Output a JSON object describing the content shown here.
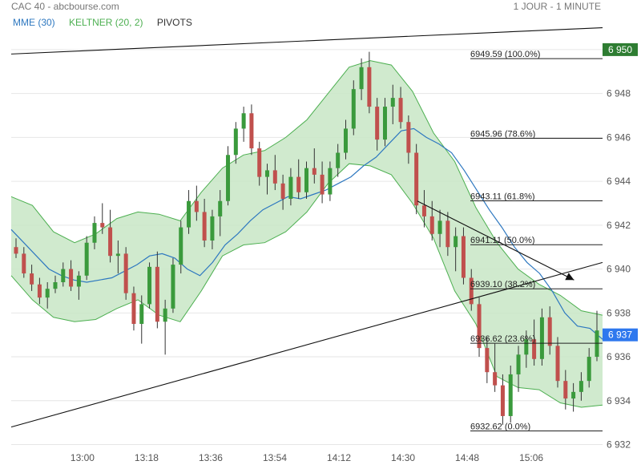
{
  "header": {
    "title": "CAC 40 - abcbourse.com",
    "period": "1 JOUR - 1 MINUTE"
  },
  "legend": {
    "mme": "MME (30)",
    "keltner": "KELTNER (20, 2)",
    "pivots": "PIVOTS"
  },
  "colors": {
    "up": "#3a9a3c",
    "down": "#c0504d",
    "mme": "#2e78c0",
    "band_fill": "#c8e6c5",
    "band_line": "#4caf50",
    "last_price": "#2e78ee"
  },
  "price_tags": {
    "top": "6 950",
    "last": "6 937"
  },
  "chart_data": {
    "type": "candlestick",
    "title": "",
    "x_ticks": [
      "13:00",
      "13:18",
      "13:36",
      "13:54",
      "14:12",
      "14:30",
      "14:48",
      "15:06"
    ],
    "y_ticks": [
      "6 932",
      "6 934",
      "6 936",
      "6 938",
      "6 940",
      "6 942",
      "6 944",
      "6 946",
      "6 948",
      "6 950"
    ],
    "y_range": [
      6931.8,
      6950.8
    ],
    "grid": "horizontal",
    "fibonacci_levels": [
      {
        "label": "6949.59  (100.0%)",
        "value": 6949.59
      },
      {
        "label": "6945.96  (78.6%)",
        "value": 6945.96
      },
      {
        "label": "6943.11  (61.8%)",
        "value": 6943.11
      },
      {
        "label": "6941.11  (50.0%)",
        "value": 6941.11
      },
      {
        "label": "6939.10  (38.2%)",
        "value": 6939.1
      },
      {
        "label": "6936.62  (23.6%)",
        "value": 6936.62
      },
      {
        "label": "6932.62  (0.0%)",
        "value": 6932.62
      }
    ],
    "trendlines": [
      {
        "from": [
          "12:40",
          6949.8
        ],
        "to": [
          "15:26",
          6951.0
        ]
      },
      {
        "from": [
          "12:40",
          6932.8
        ],
        "to": [
          "15:26",
          6940.3
        ]
      },
      {
        "from": [
          "14:34",
          6943.1
        ],
        "to": [
          "15:18",
          6939.5
        ],
        "arrow": true
      }
    ],
    "series": [
      {
        "name": "MME (30)",
        "points": [
          [
            6941.8,
            6941.2
          ],
          [
            6940.6,
            6940.0
          ],
          [
            6939.7,
            6939.5
          ],
          [
            6939.4,
            6939.5
          ],
          [
            6939.6,
            6939.9
          ],
          [
            6940.2,
            6940.6
          ],
          [
            6940.7,
            6940.5
          ],
          [
            6940.0,
            6939.7
          ],
          [
            6940.3,
            6941.1
          ],
          [
            6941.6,
            6942.2
          ],
          [
            6942.7,
            6943.0
          ],
          [
            6943.3,
            6943.2
          ],
          [
            6943.4,
            6943.6
          ],
          [
            6943.9,
            6944.2
          ],
          [
            6944.7,
            6945.1
          ],
          [
            6945.7,
            6946.3
          ],
          [
            6946.4,
            6946.0
          ],
          [
            6945.7,
            6945.3
          ],
          [
            6944.5,
            6943.6
          ],
          [
            6942.7,
            6941.9
          ],
          [
            6941.0,
            6940.3
          ],
          [
            6939.8,
            6939.0
          ],
          [
            6938.0,
            6937.4
          ],
          [
            6937.3,
            6936.8
          ]
        ]
      },
      {
        "name": "KELTNER (20, 2)",
        "points": [
          [
            6943.3,
            6939.7
          ],
          [
            6942.9,
            6938.6
          ],
          [
            6941.7,
            6937.8
          ],
          [
            6941.2,
            6937.6
          ],
          [
            6941.6,
            6937.7
          ],
          [
            6942.3,
            6938.2
          ],
          [
            6942.6,
            6938.6
          ],
          [
            6942.5,
            6937.9
          ],
          [
            6942.2,
            6937.6
          ],
          [
            6943.5,
            6939.0
          ],
          [
            6944.6,
            6940.6
          ],
          [
            6945.2,
            6941.1
          ],
          [
            6945.4,
            6941.2
          ],
          [
            6946.0,
            6941.7
          ],
          [
            6946.8,
            6942.6
          ],
          [
            6948.0,
            6943.9
          ],
          [
            6949.2,
            6944.8
          ],
          [
            6949.5,
            6944.7
          ],
          [
            6949.3,
            6944.3
          ],
          [
            6948.1,
            6943.0
          ],
          [
            6946.2,
            6941.4
          ],
          [
            6944.9,
            6939.0
          ],
          [
            6942.8,
            6937.5
          ],
          [
            6941.2,
            6935.1
          ],
          [
            6940.0,
            6934.6
          ],
          [
            6939.3,
            6934.5
          ],
          [
            6938.8,
            6933.9
          ],
          [
            6938.1,
            6933.7
          ],
          [
            6937.9,
            6933.8
          ]
        ]
      },
      {
        "name": "CAC 40",
        "candles": [
          [
            6941.0,
            6941.4,
            6940.5,
            6940.7
          ],
          [
            6940.7,
            6941.0,
            6939.6,
            6939.8
          ],
          [
            6939.8,
            6940.2,
            6939.0,
            6939.3
          ],
          [
            6939.3,
            6939.6,
            6938.4,
            6938.7
          ],
          [
            6938.7,
            6939.4,
            6938.2,
            6939.1
          ],
          [
            6939.1,
            6939.7,
            6938.9,
            6939.4
          ],
          [
            6939.4,
            6940.3,
            6939.2,
            6940.0
          ],
          [
            6940.0,
            6940.4,
            6939.0,
            6939.2
          ],
          [
            6939.2,
            6939.9,
            6938.6,
            6939.7
          ],
          [
            6939.7,
            6941.5,
            6939.5,
            6941.2
          ],
          [
            6941.2,
            6942.4,
            6940.9,
            6942.1
          ],
          [
            6942.1,
            6943.0,
            6941.6,
            6941.9
          ],
          [
            6941.9,
            6942.7,
            6940.3,
            6940.6
          ],
          [
            6940.6,
            6941.3,
            6939.8,
            6940.7
          ],
          [
            6940.7,
            6941.0,
            6938.6,
            6938.9
          ],
          [
            6938.9,
            6939.2,
            6937.2,
            6937.5
          ],
          [
            6937.5,
            6938.8,
            6936.6,
            6938.4
          ],
          [
            6938.4,
            6940.3,
            6938.2,
            6940.1
          ],
          [
            6940.1,
            6940.8,
            6937.3,
            6937.6
          ],
          [
            6937.6,
            6938.6,
            6936.1,
            6938.2
          ],
          [
            6938.2,
            6940.5,
            6938.0,
            6940.2
          ],
          [
            6940.2,
            6942.2,
            6939.8,
            6941.9
          ],
          [
            6941.9,
            6943.6,
            6941.6,
            6943.1
          ],
          [
            6943.1,
            6943.8,
            6942.2,
            6942.6
          ],
          [
            6942.6,
            6943.2,
            6941.0,
            6941.3
          ],
          [
            6941.3,
            6942.7,
            6940.9,
            6942.4
          ],
          [
            6942.4,
            6943.6,
            6941.5,
            6943.1
          ],
          [
            6943.1,
            6945.6,
            6942.9,
            6945.2
          ],
          [
            6945.2,
            6946.7,
            6944.8,
            6946.4
          ],
          [
            6946.4,
            6947.4,
            6945.8,
            6947.1
          ],
          [
            6947.1,
            6947.5,
            6945.2,
            6945.5
          ],
          [
            6945.5,
            6945.8,
            6943.8,
            6944.2
          ],
          [
            6944.2,
            6944.8,
            6943.4,
            6944.5
          ],
          [
            6944.5,
            6945.2,
            6943.6,
            6943.9
          ],
          [
            6943.9,
            6944.3,
            6942.7,
            6943.2
          ],
          [
            6943.2,
            6944.6,
            6942.9,
            6944.2
          ],
          [
            6944.2,
            6945.0,
            6943.2,
            6943.5
          ],
          [
            6943.5,
            6944.9,
            6943.2,
            6944.6
          ],
          [
            6944.6,
            6945.5,
            6943.9,
            6944.3
          ],
          [
            6944.3,
            6944.9,
            6943.0,
            6943.4
          ],
          [
            6943.4,
            6944.9,
            6943.1,
            6944.6
          ],
          [
            6944.6,
            6945.7,
            6944.2,
            6945.3
          ],
          [
            6945.3,
            6946.8,
            6945.0,
            6946.4
          ],
          [
            6946.4,
            6948.6,
            6946.1,
            6948.2
          ],
          [
            6948.2,
            6949.6,
            6947.7,
            6949.2
          ],
          [
            6949.2,
            6949.9,
            6947.1,
            6947.4
          ],
          [
            6947.4,
            6947.8,
            6945.4,
            6945.9
          ],
          [
            6945.9,
            6947.8,
            6945.6,
            6947.4
          ],
          [
            6947.4,
            6948.4,
            6946.6,
            6947.8
          ],
          [
            6947.8,
            6948.3,
            6946.4,
            6946.7
          ],
          [
            6946.7,
            6947.0,
            6944.8,
            6945.3
          ],
          [
            6945.3,
            6945.7,
            6942.5,
            6942.9
          ],
          [
            6942.9,
            6943.6,
            6941.9,
            6942.4
          ],
          [
            6942.4,
            6943.1,
            6941.3,
            6941.6
          ],
          [
            6941.6,
            6942.7,
            6941.0,
            6942.2
          ],
          [
            6942.2,
            6942.6,
            6940.6,
            6941.0
          ],
          [
            6941.0,
            6941.9,
            6939.9,
            6941.5
          ],
          [
            6941.5,
            6941.9,
            6939.3,
            6939.6
          ],
          [
            6939.6,
            6940.0,
            6938.1,
            6938.4
          ],
          [
            6938.4,
            6938.7,
            6936.0,
            6936.4
          ],
          [
            6936.4,
            6936.9,
            6934.8,
            6935.3
          ],
          [
            6935.3,
            6936.6,
            6934.4,
            6934.7
          ],
          [
            6934.7,
            6935.2,
            6932.9,
            6933.3
          ],
          [
            6933.3,
            6935.6,
            6933.0,
            6935.2
          ],
          [
            6935.2,
            6936.5,
            6934.4,
            6936.1
          ],
          [
            6936.1,
            6937.2,
            6935.5,
            6936.8
          ],
          [
            6936.8,
            6937.7,
            6935.6,
            6935.9
          ],
          [
            6935.9,
            6938.2,
            6935.6,
            6937.8
          ],
          [
            6937.8,
            6938.3,
            6936.1,
            6936.5
          ],
          [
            6936.5,
            6936.9,
            6934.6,
            6934.9
          ],
          [
            6934.9,
            6935.4,
            6933.6,
            6934.1
          ],
          [
            6934.1,
            6934.8,
            6933.5,
            6934.4
          ],
          [
            6934.4,
            6935.3,
            6934.0,
            6934.9
          ],
          [
            6934.9,
            6936.4,
            6934.6,
            6936.0
          ],
          [
            6936.0,
            6938.1,
            6935.8,
            6937.2
          ]
        ]
      }
    ]
  }
}
